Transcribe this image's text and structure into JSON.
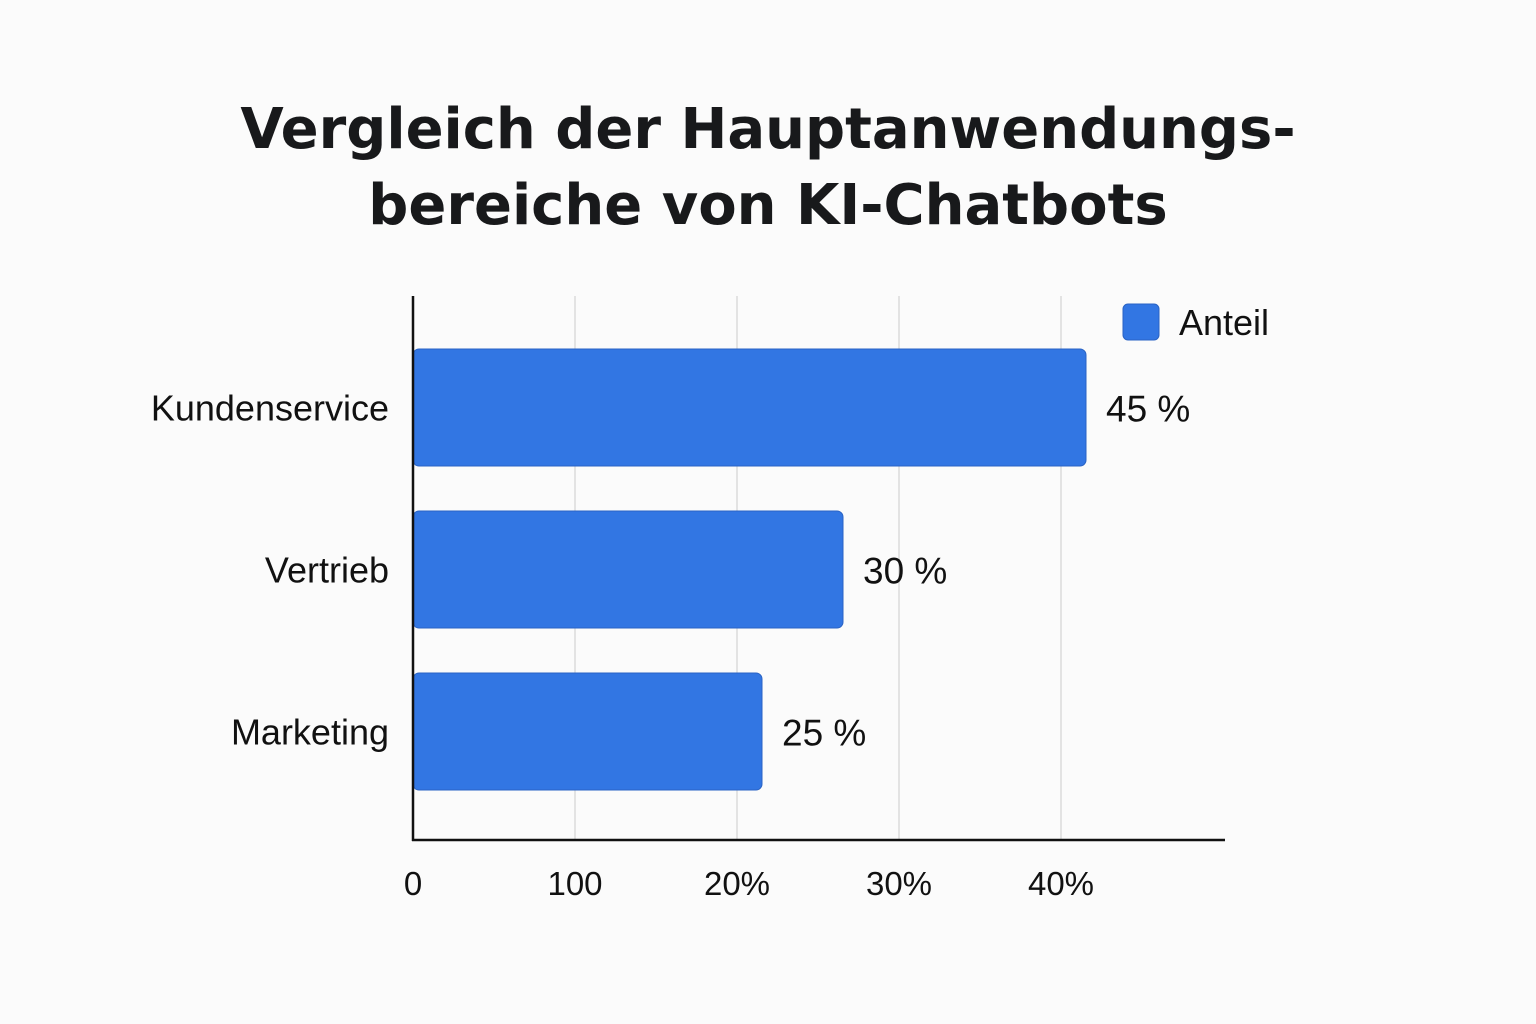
{
  "title_lines": [
    "Vergleich der Hauptanwendungs-",
    "bereiche von KI-Chatbots"
  ],
  "colors": {
    "bar": "#3276e3",
    "bar_edge": "#2a63c4",
    "grid": "#e3e3e3",
    "axis": "#111111"
  },
  "chart_data": {
    "type": "bar",
    "orientation": "horizontal",
    "title": "Vergleich der Hauptanwendungsbereiche von KI-Chatbots",
    "categories": [
      "Kundenservice",
      "Vertrieb",
      "Marketing"
    ],
    "series": [
      {
        "name": "Anteil",
        "values": [
          45,
          30,
          25
        ],
        "labels": [
          "45 %",
          "30 %",
          "25 %"
        ]
      }
    ],
    "x_ticks": [
      "0",
      "100",
      "20%",
      "30%",
      "40%"
    ],
    "xlabel": "",
    "ylabel": "",
    "grid": "vertical",
    "legend": "top-right"
  }
}
